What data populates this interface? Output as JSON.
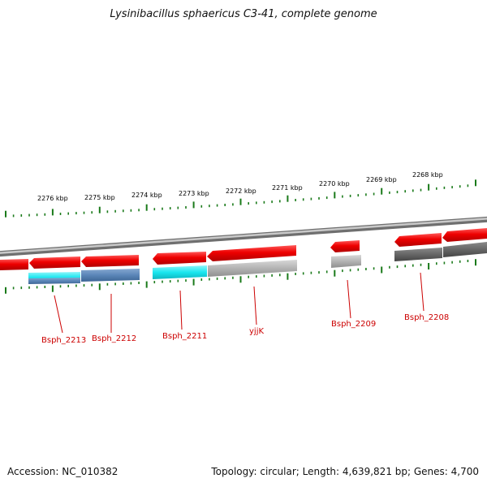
{
  "title": "Lysinibacillus sphaericus C3-41, complete genome",
  "footer": {
    "accession": "Accession: NC_010382",
    "summary": "Topology: circular; Length: 4,639,821 bp; Genes: 4,700"
  },
  "scale_ticks": [
    {
      "label": "2276 kbp"
    },
    {
      "label": "2275 kbp"
    },
    {
      "label": "2274 kbp"
    },
    {
      "label": "2273 kbp"
    },
    {
      "label": "2272 kbp"
    },
    {
      "label": "2271 kbp"
    },
    {
      "label": "2270 kbp"
    },
    {
      "label": "2269 kbp"
    },
    {
      "label": "2268 kbp"
    }
  ],
  "gene_labels": [
    {
      "text": "Bsph_2213"
    },
    {
      "text": "Bsph_2212"
    },
    {
      "text": "Bsph_2211"
    },
    {
      "text": "yjjK"
    },
    {
      "text": "Bsph_2209"
    },
    {
      "text": "Bsph_2208"
    }
  ],
  "colors": {
    "cds_forward": "#e8000b",
    "label_red": "#cc0000",
    "tick_green": "#1a7a1a",
    "backbone_gray": "#8a8a8a",
    "cog_cyan": "#19e6ef",
    "cog_steelblue": "#5b86b8",
    "cog_gray": "#b3b3b3",
    "cog_darkgray": "#6e6e6e"
  }
}
